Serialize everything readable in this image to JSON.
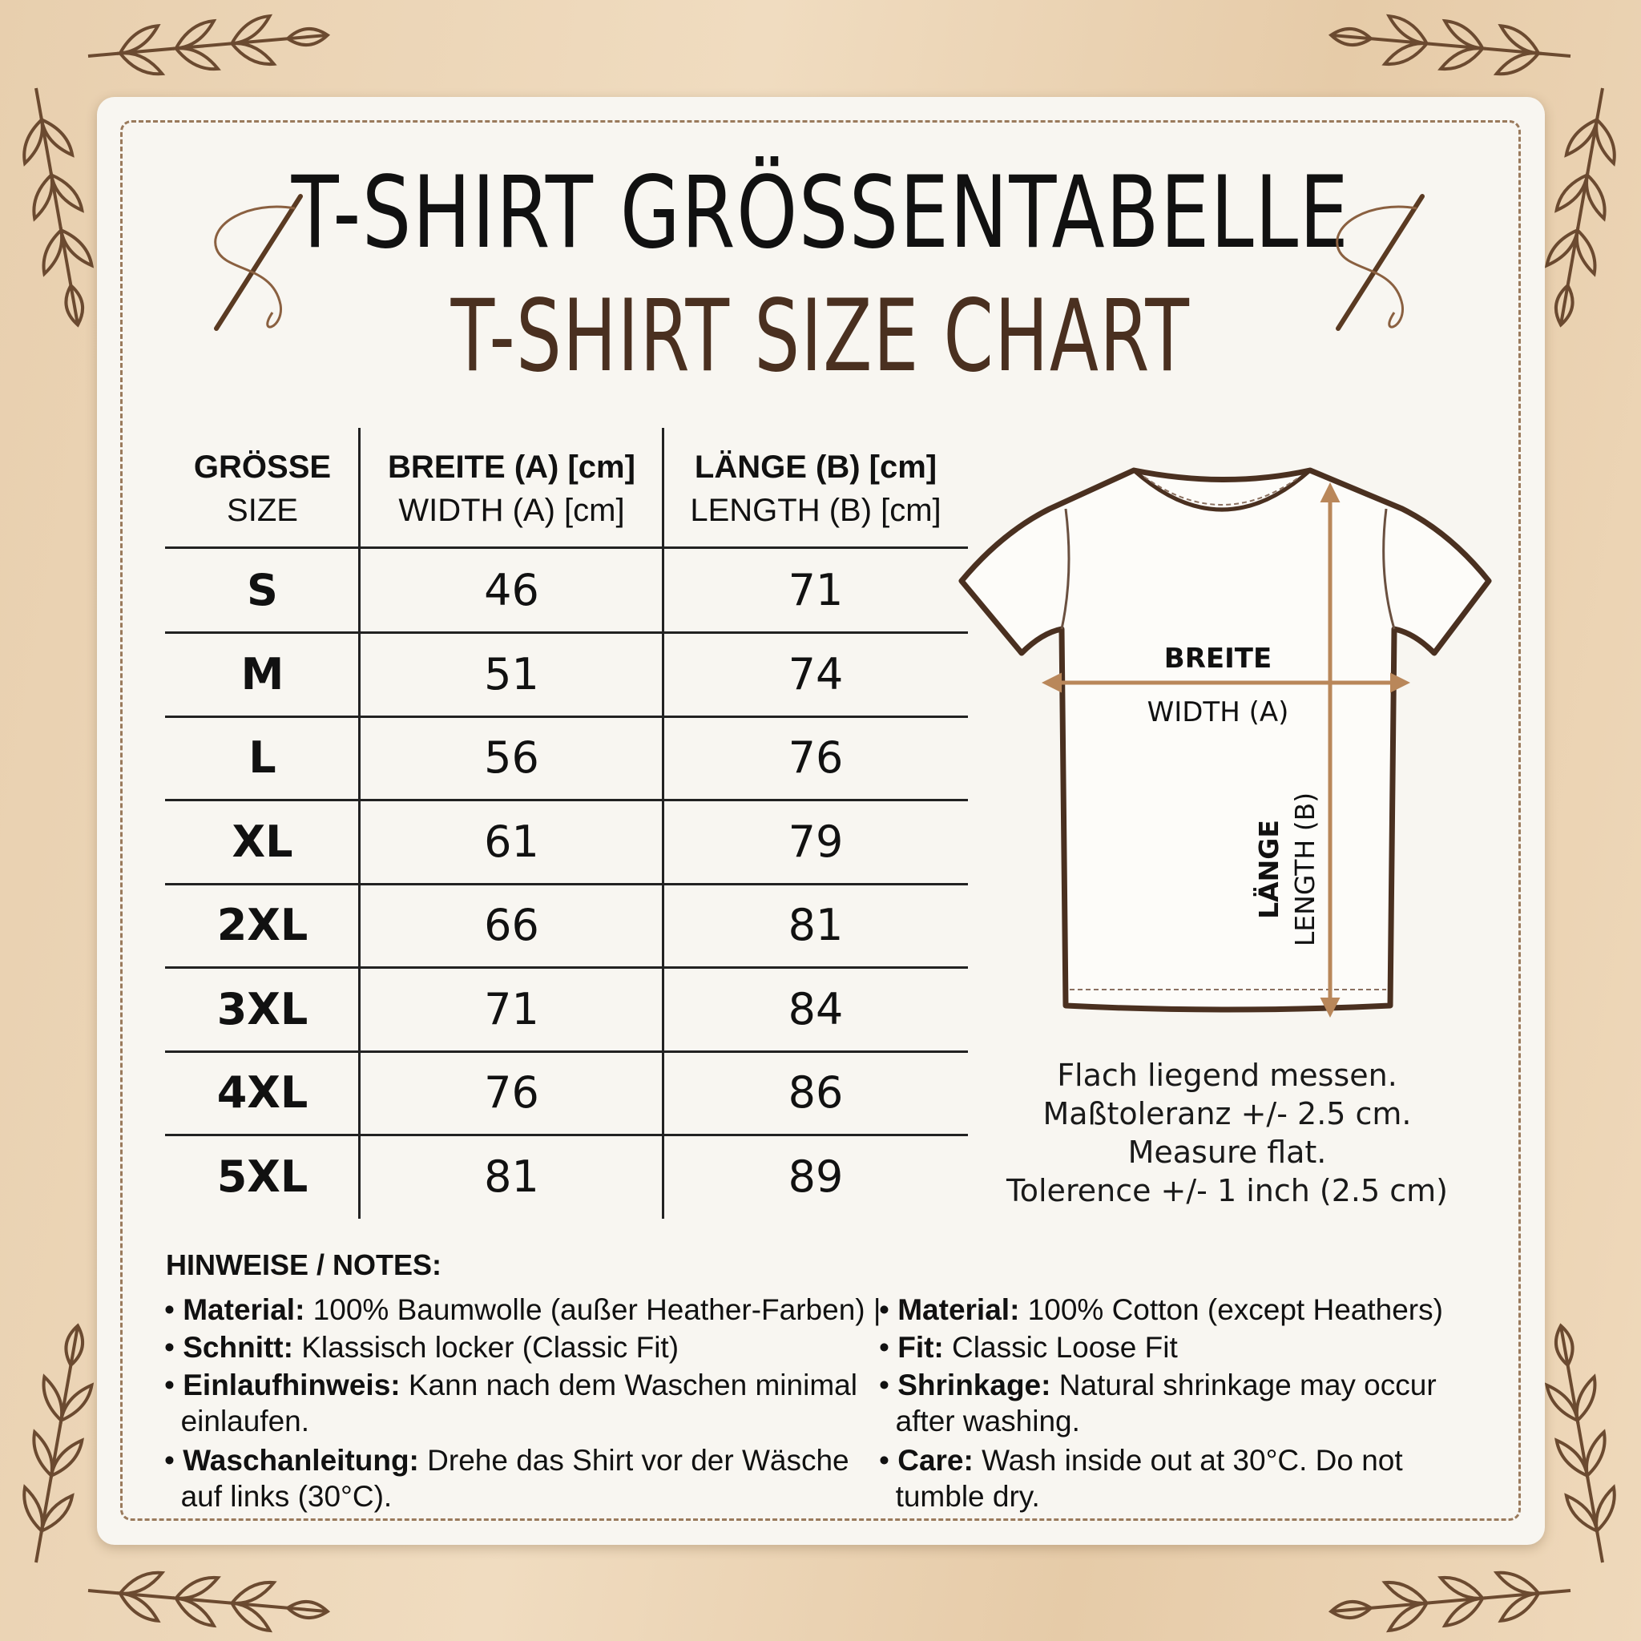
{
  "title": {
    "de": "T-SHIRT GRÖSSENTABELLE",
    "en": "T-SHIRT SIZE CHART"
  },
  "colors": {
    "accent": "#b9875a",
    "title_en": "#4a3020",
    "background": "#ead3b3",
    "card": "#f8f6f1"
  },
  "table": {
    "headers": [
      {
        "de": "GRÖSSE",
        "en": "SIZE"
      },
      {
        "de": "BREITE (A) [cm]",
        "en": "WIDTH (A) [cm]"
      },
      {
        "de": "LÄNGE (B) [cm]",
        "en": "LENGTH (B) [cm]"
      }
    ],
    "rows": [
      {
        "size": "S",
        "width": "46",
        "length": "71"
      },
      {
        "size": "M",
        "width": "51",
        "length": "74"
      },
      {
        "size": "L",
        "width": "56",
        "length": "76"
      },
      {
        "size": "XL",
        "width": "61",
        "length": "79"
      },
      {
        "size": "2XL",
        "width": "66",
        "length": "81"
      },
      {
        "size": "3XL",
        "width": "71",
        "length": "84"
      },
      {
        "size": "4XL",
        "width": "76",
        "length": "86"
      },
      {
        "size": "5XL",
        "width": "81",
        "length": "89"
      }
    ]
  },
  "diagram": {
    "width_de": "BREITE",
    "width_en": "WIDTH (A)",
    "length_de": "LÄNGE",
    "length_en": "LENGTH (B)"
  },
  "measure_notes": [
    "Flach liegend messen.",
    "Maßtoleranz +/- 2.5 cm.",
    "Measure flat.",
    "Tolerence +/- 1 inch (2.5 cm)"
  ],
  "notes": {
    "heading": "HINWEISE / NOTES:",
    "de": [
      {
        "label": "Material:",
        "text": " 100% Baumwolle (außer Heather-Farben) |"
      },
      {
        "label": "Schnitt:",
        "text": " Klassisch locker (Classic Fit)"
      },
      {
        "label": "Einlaufhinweis:",
        "text": " Kann nach dem Waschen minimal",
        "text2": "einlaufen."
      },
      {
        "label": "Waschanleitung:",
        "text": " Drehe das Shirt vor der Wäsche",
        "text2": "auf links (30°C)."
      }
    ],
    "en": [
      {
        "label": "Material:",
        "text": " 100% Cotton (except Heathers)"
      },
      {
        "label": "Fit:",
        "text": " Classic Loose Fit"
      },
      {
        "label": "Shrinkage:",
        "text": " Natural shrinkage may occur",
        "text2": "after washing."
      },
      {
        "label": "Care:",
        "text": " Wash inside out at 30°C. Do not",
        "text2": "tumble dry."
      }
    ]
  }
}
